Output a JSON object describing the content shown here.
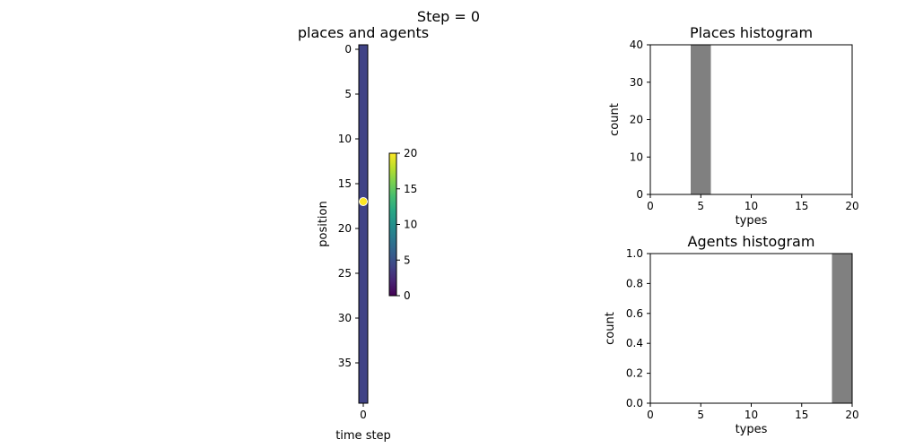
{
  "suptitle": "Step = 0",
  "chart_data": [
    {
      "type": "heatmap",
      "title": "places and agents",
      "xlabel": "time step",
      "ylabel": "position",
      "x_ticks": [
        0
      ],
      "y_ticks": [
        0,
        5,
        10,
        15,
        20,
        25,
        30,
        35
      ],
      "rows": 40,
      "cols": 1,
      "cell_value": 4,
      "cmap": "viridis",
      "agents": [
        {
          "time_step": 0,
          "position": 17,
          "type": 20
        }
      ],
      "colorbar": {
        "min": 0,
        "max": 20,
        "ticks": [
          0,
          5,
          10,
          15,
          20
        ]
      }
    },
    {
      "type": "bar",
      "title": "Places histogram",
      "xlabel": "types",
      "ylabel": "count",
      "xlim": [
        0,
        20
      ],
      "ylim": [
        0,
        40
      ],
      "x_ticks": [
        0,
        5,
        10,
        15,
        20
      ],
      "y_ticks": [
        0,
        10,
        20,
        30,
        40
      ],
      "bins": [
        {
          "from": 4,
          "to": 6,
          "count": 40
        }
      ],
      "bar_color": "#808080"
    },
    {
      "type": "bar",
      "title": "Agents histogram",
      "xlabel": "types",
      "ylabel": "count",
      "xlim": [
        0,
        20
      ],
      "ylim": [
        0,
        1
      ],
      "x_ticks": [
        0,
        5,
        10,
        15,
        20
      ],
      "y_ticks": [
        0.0,
        0.2,
        0.4,
        0.6,
        0.8,
        1.0
      ],
      "y_tick_decimals": 1,
      "bins": [
        {
          "from": 18,
          "to": 20,
          "count": 1
        }
      ],
      "bar_color": "#808080"
    }
  ]
}
